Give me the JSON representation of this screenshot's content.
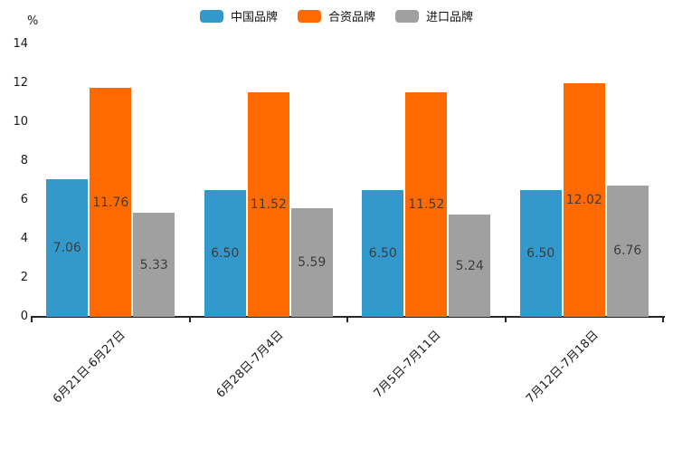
{
  "chart_data": {
    "type": "bar",
    "title": "",
    "xlabel": "",
    "ylabel": "%",
    "ylim": [
      0,
      14
    ],
    "yticks": [
      0,
      2,
      4,
      6,
      8,
      10,
      12,
      14
    ],
    "grid": false,
    "legend_position": "top",
    "value_label_decimals": 2,
    "categories": [
      "6月21日-6月27日",
      "6月28日-7月4日",
      "7月5日-7月11日",
      "7月12日-7月18日"
    ],
    "series": [
      {
        "name": "中国品牌",
        "color": "#3399CC",
        "values": [
          7.06,
          6.5,
          6.5,
          6.5
        ]
      },
      {
        "name": "合资品牌",
        "color": "#FF6A00",
        "values": [
          11.76,
          11.52,
          11.52,
          12.02
        ]
      },
      {
        "name": "进口品牌",
        "color": "#A0A0A0",
        "values": [
          5.33,
          5.59,
          5.24,
          6.76
        ]
      }
    ]
  }
}
